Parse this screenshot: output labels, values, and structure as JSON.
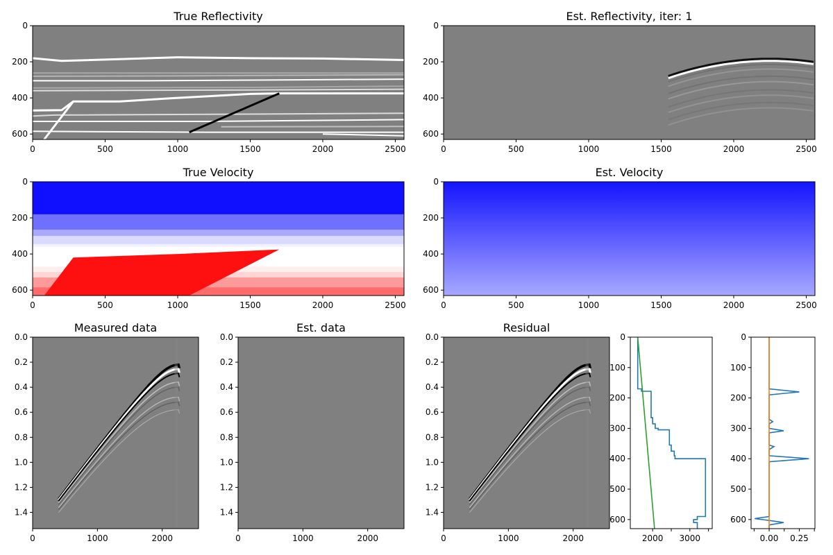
{
  "chart_data": [
    {
      "id": "true-reflectivity",
      "type": "heatmap",
      "title": "True Reflectivity",
      "xlim": [
        0,
        2560
      ],
      "ylim": [
        630,
        0
      ],
      "xticks": [
        "0",
        "500",
        "1000",
        "1500",
        "2000",
        "2500"
      ],
      "yticks": [
        "0",
        "200",
        "400",
        "600"
      ],
      "colormap": "gray",
      "reflectors": [
        {
          "points": [
            [
              0,
              180
            ],
            [
              200,
              195
            ],
            [
              600,
              185
            ],
            [
              1000,
              175
            ],
            [
              1500,
              180
            ],
            [
              2000,
              182
            ],
            [
              2560,
              190
            ]
          ],
          "color": "#ffffff",
          "width": 3
        },
        {
          "points": [
            [
              0,
              262
            ],
            [
              2560,
              262
            ]
          ],
          "color": "#a8a8a8",
          "width": 2
        },
        {
          "points": [
            [
              0,
              280
            ],
            [
              1000,
              278
            ],
            [
              2560,
              272
            ]
          ],
          "color": "#b4b4b4",
          "width": 2
        },
        {
          "points": [
            [
              0,
              305
            ],
            [
              800,
              305
            ],
            [
              1800,
              300
            ],
            [
              2560,
              296
            ]
          ],
          "color": "#ffffff",
          "width": 2
        },
        {
          "points": [
            [
              0,
              345
            ],
            [
              1500,
              342
            ],
            [
              2560,
              335
            ]
          ],
          "color": "#a8a8a8",
          "width": 2
        },
        {
          "points": [
            [
              0,
              360
            ],
            [
              1500,
              356
            ],
            [
              2560,
              352
            ]
          ],
          "color": "#dcdcdc",
          "width": 2
        },
        {
          "points": [
            [
              0,
              470
            ],
            [
              200,
              468
            ],
            [
              280,
              420
            ],
            [
              600,
              420
            ],
            [
              1000,
              400
            ],
            [
              1500,
              378
            ],
            [
              1700,
              375
            ],
            [
              2000,
              375
            ],
            [
              2560,
              375
            ]
          ],
          "color": "#ffffff",
          "width": 3
        },
        {
          "points": [
            [
              0,
              500
            ],
            [
              150,
              495
            ],
            [
              2560,
              485
            ]
          ],
          "color": "#dcdcdc",
          "width": 2
        },
        {
          "points": [
            [
              0,
              530
            ],
            [
              1200,
              530
            ],
            [
              2560,
              520
            ]
          ],
          "color": "#ffffff",
          "width": 2
        },
        {
          "points": [
            [
              1300,
              560
            ],
            [
              2560,
              558
            ]
          ],
          "color": "#c0c0c0",
          "width": 2
        },
        {
          "points": [
            [
              0,
              585
            ],
            [
              1200,
              590
            ],
            [
              2560,
              590
            ]
          ],
          "color": "#ffffff",
          "width": 2
        },
        {
          "points": [
            [
              2000,
              600
            ],
            [
              2560,
              610
            ]
          ],
          "color": "#ffffff",
          "width": 2
        },
        {
          "points": [
            [
              80,
              630
            ],
            [
              280,
              420
            ]
          ],
          "color": "#ffffff",
          "width": 3
        },
        {
          "points": [
            [
              1080,
              590
            ],
            [
              1700,
              375
            ]
          ],
          "color": "#000000",
          "width": 3
        }
      ]
    },
    {
      "id": "est-reflectivity",
      "type": "heatmap",
      "title": "Est. Reflectivity, iter: 1",
      "xlim": [
        0,
        2560
      ],
      "ylim": [
        630,
        0
      ],
      "xticks": [
        "0",
        "500",
        "1000",
        "1500",
        "2000",
        "2500"
      ],
      "yticks": [
        "0",
        "200",
        "400",
        "600"
      ],
      "colormap": "gray",
      "features": "weak migration artifacts concentrated near x 2000-2400, strong event near depth 190"
    },
    {
      "id": "true-velocity",
      "type": "heatmap",
      "title": "True Velocity",
      "xlim": [
        0,
        2560
      ],
      "ylim": [
        630,
        0
      ],
      "xticks": [
        "0",
        "500",
        "1000",
        "1500",
        "2000",
        "2500"
      ],
      "yticks": [
        "0",
        "200",
        "400",
        "600"
      ],
      "colormap": "bwr",
      "layers": [
        {
          "top": 0,
          "bottom": 180,
          "color": "#1010ff"
        },
        {
          "top": 180,
          "bottom": 265,
          "color": "#7070ff"
        },
        {
          "top": 265,
          "bottom": 300,
          "color": "#a8a8ff"
        },
        {
          "top": 300,
          "bottom": 345,
          "color": "#dadaff"
        },
        {
          "top": 345,
          "bottom": 360,
          "color": "#f0f0ff"
        },
        {
          "top": 360,
          "bottom": 470,
          "color": "#ffffff"
        },
        {
          "top": 470,
          "bottom": 500,
          "color": "#ffeeee"
        },
        {
          "top": 500,
          "bottom": 530,
          "color": "#ffd4d4"
        },
        {
          "top": 530,
          "bottom": 585,
          "color": "#ff9a9a"
        },
        {
          "top": 585,
          "bottom": 630,
          "color": "#ff6a6a"
        }
      ],
      "wedge": {
        "points": [
          [
            80,
            630
          ],
          [
            280,
            420
          ],
          [
            1000,
            400
          ],
          [
            1700,
            375
          ],
          [
            1080,
            630
          ]
        ],
        "color": "#ff1010"
      }
    },
    {
      "id": "est-velocity",
      "type": "heatmap",
      "title": "Est. Velocity",
      "xlim": [
        0,
        2560
      ],
      "ylim": [
        630,
        0
      ],
      "xticks": [
        "0",
        "500",
        "1000",
        "1500",
        "2000",
        "2500"
      ],
      "yticks": [
        "0",
        "200",
        "400",
        "600"
      ],
      "colormap": "bwr",
      "gradient": [
        "#1414ff",
        "#a8a8ff"
      ]
    },
    {
      "id": "measured-data",
      "type": "heatmap",
      "title": "Measured data",
      "xlim": [
        0,
        2560
      ],
      "ylim": [
        1.53,
        0
      ],
      "xticks": [
        "0",
        "1000",
        "2000"
      ],
      "yticks": [
        "0.0",
        "0.2",
        "0.4",
        "0.6",
        "0.8",
        "1.0",
        "1.2",
        "1.4"
      ],
      "colormap": "gray",
      "apex": [
        2250,
        0.22
      ],
      "x_extent": [
        400,
        2250
      ]
    },
    {
      "id": "est-data",
      "type": "heatmap",
      "title": "Est. data",
      "xlim": [
        0,
        2560
      ],
      "ylim": [
        1.53,
        0
      ],
      "xticks": [
        "0",
        "1000",
        "2000"
      ],
      "yticks": [
        "0.0",
        "0.2",
        "0.4",
        "0.6",
        "0.8",
        "1.0",
        "1.2",
        "1.4"
      ],
      "colormap": "gray"
    },
    {
      "id": "residual",
      "type": "heatmap",
      "title": "Residual",
      "xlim": [
        0,
        2560
      ],
      "ylim": [
        1.53,
        0
      ],
      "xticks": [
        "0",
        "1000",
        "2000"
      ],
      "yticks": [
        "0.0",
        "0.2",
        "0.4",
        "0.6",
        "0.8",
        "1.0",
        "1.2",
        "1.4"
      ],
      "colormap": "gray",
      "apex": [
        2250,
        0.22
      ],
      "x_extent": [
        400,
        2250
      ]
    },
    {
      "id": "velocity-profile",
      "type": "line",
      "title": "",
      "xlim": [
        1400,
        3600
      ],
      "ylim": [
        630,
        0
      ],
      "xticks": [
        "2000",
        "3000"
      ],
      "xtick_values": [
        2000,
        2500,
        3000,
        3500
      ],
      "xtick_labeled": [
        true,
        false,
        true,
        false
      ],
      "yticks": [
        "0",
        "100",
        "200",
        "300",
        "400",
        "500",
        "600"
      ],
      "series": [
        {
          "color": "#1f77b4",
          "points": [
            [
              1600,
              0
            ],
            [
              1600,
              170
            ],
            [
              1700,
              170
            ],
            [
              1700,
              178
            ],
            [
              1960,
              178
            ],
            [
              1960,
              265
            ],
            [
              2000,
              265
            ],
            [
              2000,
              285
            ],
            [
              2070,
              285
            ],
            [
              2070,
              300
            ],
            [
              2150,
              300
            ],
            [
              2150,
              305
            ],
            [
              2450,
              305
            ],
            [
              2450,
              355
            ],
            [
              2500,
              355
            ],
            [
              2500,
              375
            ],
            [
              2580,
              375
            ],
            [
              2580,
              390
            ],
            [
              2600,
              390
            ],
            [
              2600,
              400
            ],
            [
              3420,
              400
            ],
            [
              3420,
              590
            ],
            [
              3200,
              590
            ],
            [
              3200,
              600
            ],
            [
              3100,
              600
            ],
            [
              3100,
              610
            ],
            [
              3200,
              610
            ],
            [
              3200,
              630
            ]
          ]
        },
        {
          "color": "#2ca02c",
          "points": [
            [
              1600,
              0
            ],
            [
              2050,
              630
            ]
          ]
        }
      ]
    },
    {
      "id": "reflectivity-profile",
      "type": "line",
      "title": "",
      "xlim": [
        -0.15,
        0.38
      ],
      "ylim": [
        630,
        0
      ],
      "xticks": [
        "0.00",
        "0.25"
      ],
      "xtick_values": [
        -0.125,
        0.0,
        0.125,
        0.25,
        0.375
      ],
      "xtick_labeled": [
        false,
        true,
        false,
        true,
        false
      ],
      "yticks": [
        "0",
        "100",
        "200",
        "300",
        "400",
        "500",
        "600"
      ],
      "series": [
        {
          "color": "#1f77b4",
          "points": [
            [
              0,
              0
            ],
            [
              0,
              170
            ],
            [
              0.25,
              180
            ],
            [
              0,
              190
            ],
            [
              0,
              270
            ],
            [
              0.03,
              278
            ],
            [
              0,
              285
            ],
            [
              0,
              300
            ],
            [
              0.12,
              308
            ],
            [
              0,
              315
            ],
            [
              0,
              355
            ],
            [
              0.04,
              360
            ],
            [
              0,
              370
            ],
            [
              0,
              390
            ],
            [
              0.33,
              400
            ],
            [
              0,
              410
            ],
            [
              0,
              590
            ],
            [
              -0.12,
              597
            ],
            [
              0,
              603
            ],
            [
              0.12,
              610
            ],
            [
              0,
              618
            ],
            [
              0,
              630
            ]
          ]
        },
        {
          "color": "#ff7f0e",
          "points": [
            [
              0,
              0
            ],
            [
              0,
              630
            ]
          ]
        }
      ]
    }
  ]
}
